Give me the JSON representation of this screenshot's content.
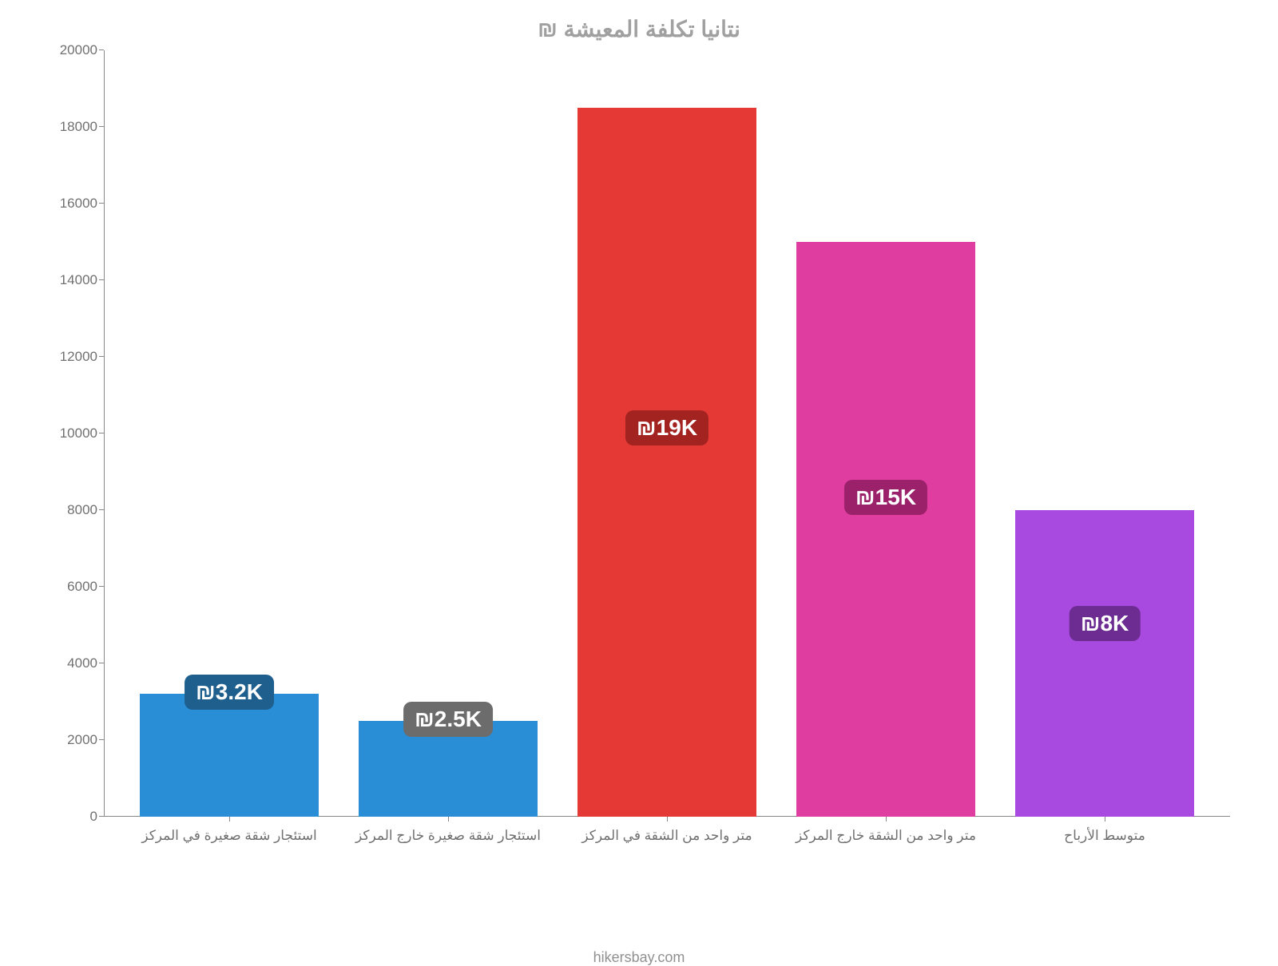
{
  "chart": {
    "type": "bar",
    "title": "نتانيا تكلفة المعيشة ₪",
    "title_fontsize": 28,
    "title_color": "#a0a0a0",
    "background_color": "#ffffff",
    "axis_color": "#888888",
    "tick_label_color": "#707070",
    "tick_fontsize": 17,
    "ylim": [
      0,
      20000
    ],
    "ytick_step": 2000,
    "yticks": [
      0,
      2000,
      4000,
      6000,
      8000,
      10000,
      12000,
      14000,
      16000,
      18000,
      20000
    ],
    "bar_width": 0.82,
    "bars": [
      {
        "category": "استئجار شقة صغيرة في المركز",
        "value": 3200,
        "color": "#2a8ed7",
        "label_text": "₪3.2K",
        "label_bg": "#1e5f8e",
        "label_offset": 0
      },
      {
        "category": "استئجار شقة صغيرة خارج المركز",
        "value": 2500,
        "color": "#2a8ed7",
        "label_text": "₪2.5K",
        "label_bg": "#6c6c6c",
        "label_offset": 0
      },
      {
        "category": "متر واحد من الشقة في المركز",
        "value": 18500,
        "color": "#e53935",
        "label_text": "₪19K",
        "label_bg": "#a32320",
        "label_offset": -8400
      },
      {
        "category": "متر واحد من الشقة خارج المركز",
        "value": 15000,
        "color": "#e03da0",
        "label_text": "₪15K",
        "label_bg": "#9c216b",
        "label_offset": -6700
      },
      {
        "category": "متوسط الأرباح",
        "value": 8000,
        "color": "#a84adf",
        "label_text": "₪8K",
        "label_bg": "#6c2c92",
        "label_offset": -3000
      }
    ],
    "source": "hikersbay.com",
    "source_color": "#909090",
    "source_fontsize": 18
  }
}
